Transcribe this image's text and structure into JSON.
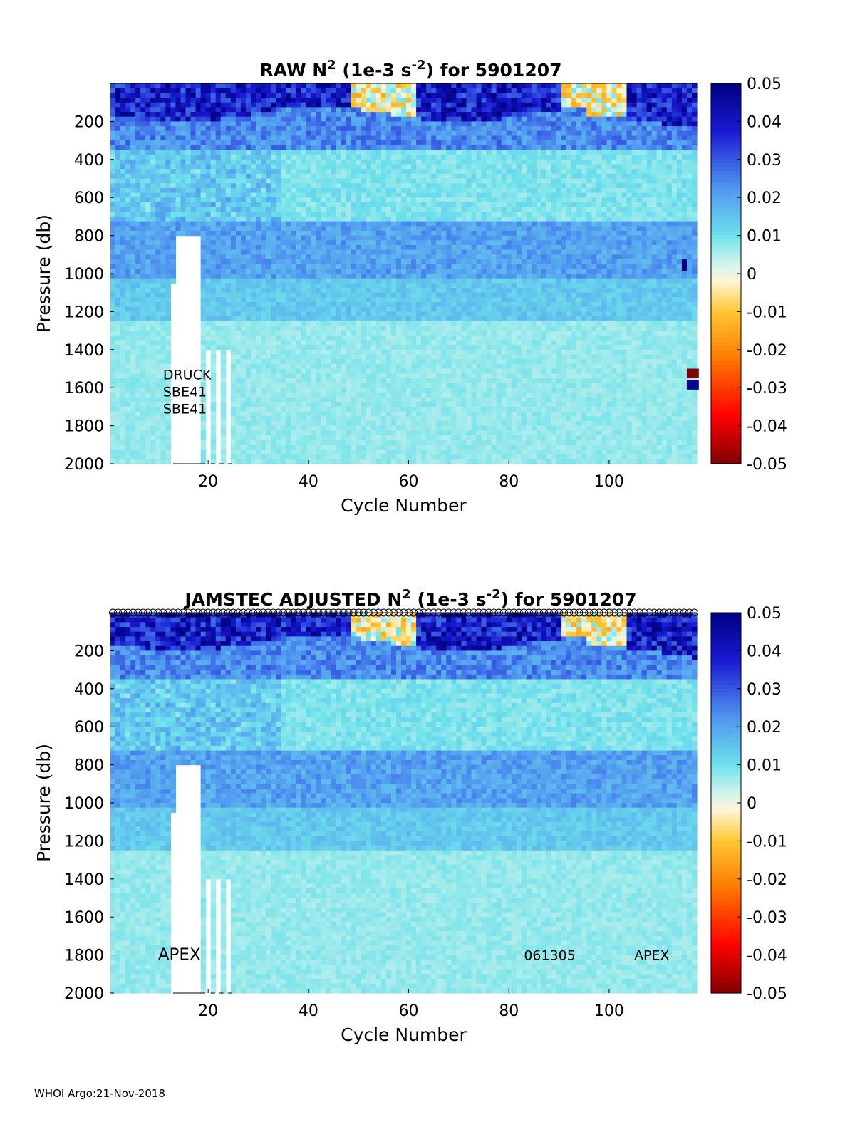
{
  "footer": "WHOI Argo:21-Nov-2018",
  "chart_data": [
    {
      "type": "heatmap",
      "title": "RAW N² (1e-3 s⁻²) for 5901207",
      "title_parts": {
        "pre": "RAW N",
        "sup1": "2",
        "mid": " (1e-3 s",
        "sup2": "-2",
        "post": ") for 5901207"
      },
      "xlabel": "Cycle Number",
      "ylabel": "Pressure (db)",
      "xlim": [
        1,
        117
      ],
      "ylim": [
        2000,
        0
      ],
      "x_ticks": [
        20,
        40,
        60,
        80,
        100
      ],
      "y_ticks": [
        200,
        400,
        600,
        800,
        1000,
        1200,
        1400,
        1600,
        1800,
        2000
      ],
      "colorbar": {
        "range": [
          -0.05,
          0.05
        ],
        "ticks": [
          "0.05",
          "0.04",
          "0.03",
          "0.02",
          "0.01",
          "0",
          "-0.01",
          "-0.02",
          "-0.03",
          "-0.04",
          "-0.05"
        ]
      },
      "annotations": [
        {
          "text": "DRUCK",
          "x": 11,
          "y": 1530
        },
        {
          "text": "SBE41",
          "x": 11,
          "y": 1620
        },
        {
          "text": "SBE41",
          "x": 11,
          "y": 1710
        }
      ],
      "approx_structure": {
        "surface_layer_0_250db": 0.04,
        "intermediate_400_700db": 0.007,
        "band_750_1000db": 0.017,
        "deep_1200_2000db": 0.005
      }
    },
    {
      "type": "heatmap",
      "title": "JAMSTEC  ADJUSTED N² (1e-3 s⁻²) for 5901207",
      "title_parts": {
        "pre": "JAMSTEC  ADJUSTED N",
        "sup1": "2",
        "mid": " (1e-3 s",
        "sup2": "-2",
        "post": ") for 5901207"
      },
      "xlabel": "Cycle Number",
      "ylabel": "Pressure (db)",
      "xlim": [
        1,
        117
      ],
      "ylim": [
        2000,
        0
      ],
      "x_ticks": [
        20,
        40,
        60,
        80,
        100
      ],
      "y_ticks": [
        200,
        400,
        600,
        800,
        1000,
        1200,
        1400,
        1600,
        1800,
        2000
      ],
      "colorbar": {
        "range": [
          -0.05,
          0.05
        ],
        "ticks": [
          "0.05",
          "0.04",
          "0.03",
          "0.02",
          "0.01",
          "0",
          "-0.01",
          "-0.02",
          "-0.03",
          "-0.04",
          "-0.05"
        ]
      },
      "qc_markers": "circle at top of every cycle",
      "annotations": [
        {
          "text": "APEX",
          "x": 10,
          "y": 1800
        },
        {
          "text": "061305",
          "x": 83,
          "y": 1800
        },
        {
          "text": "APEX",
          "x": 105,
          "y": 1800
        }
      ]
    }
  ]
}
